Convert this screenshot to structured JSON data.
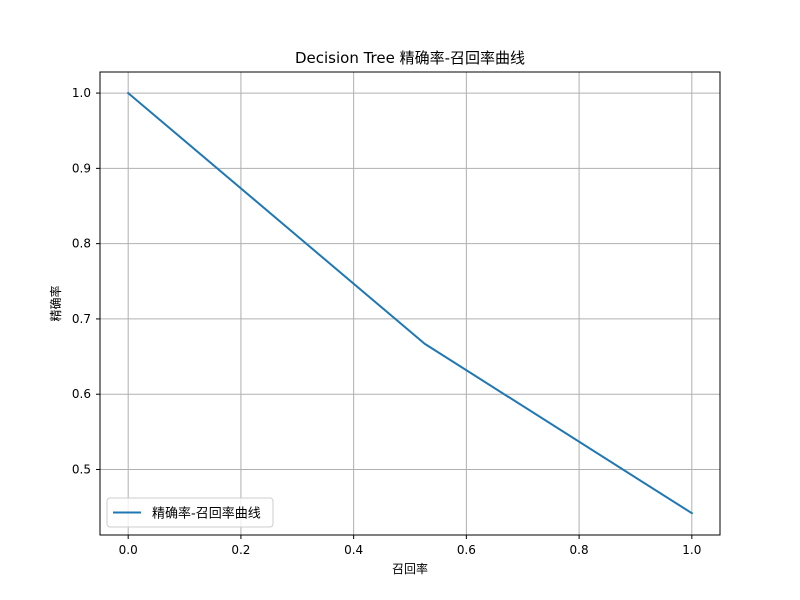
{
  "chart_data": {
    "type": "line",
    "title": "Decision Tree 精确率-召回率曲线",
    "xlabel": "召回率",
    "ylabel": "精确率",
    "xlim": [
      -0.05,
      1.05
    ],
    "ylim": [
      0.413,
      1.028
    ],
    "grid": true,
    "legend_position": "lower-left",
    "x_ticks": [
      0.0,
      0.2,
      0.4,
      0.6,
      0.8,
      1.0
    ],
    "x_tick_labels": [
      "0.0",
      "0.2",
      "0.4",
      "0.6",
      "0.8",
      "1.0"
    ],
    "y_ticks": [
      0.5,
      0.6,
      0.7,
      0.8,
      0.9,
      1.0
    ],
    "y_tick_labels": [
      "0.5",
      "0.6",
      "0.7",
      "0.8",
      "0.9",
      "1.0"
    ],
    "series": [
      {
        "name": "精确率-召回率曲线",
        "color": "#1f77b4",
        "x": [
          0.0,
          0.526,
          1.0
        ],
        "y": [
          1.0,
          0.667,
          0.442
        ]
      }
    ]
  }
}
